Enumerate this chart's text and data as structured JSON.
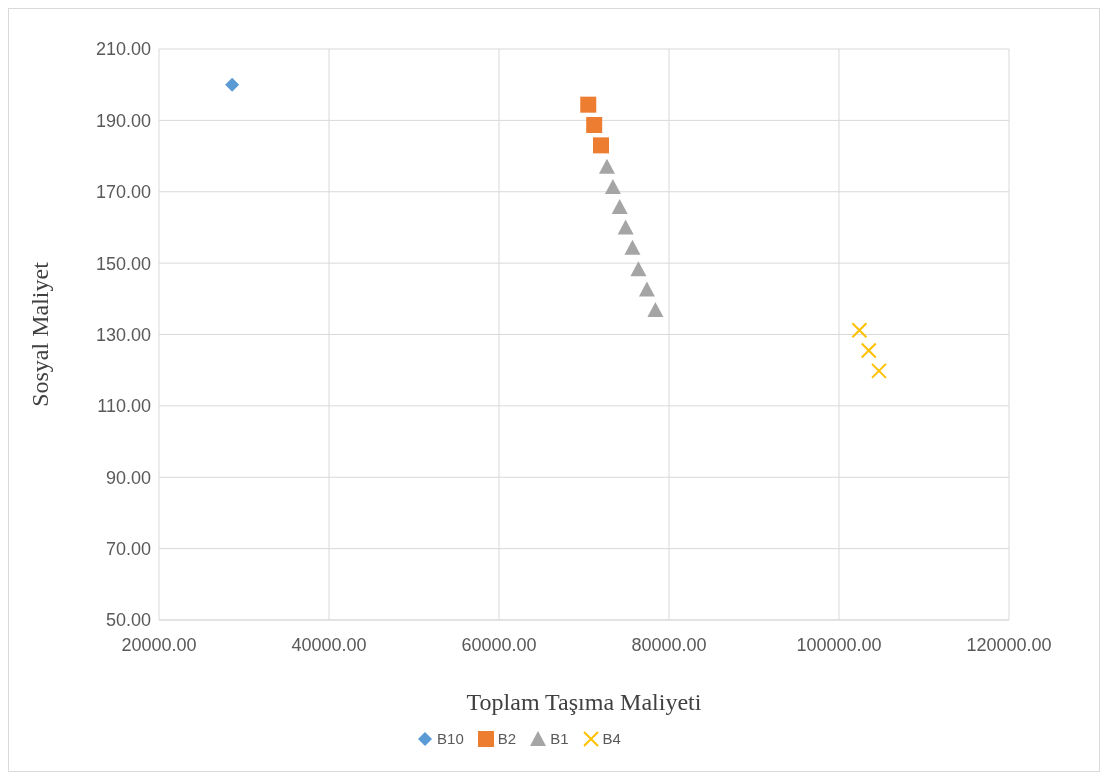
{
  "chart_data": {
    "type": "scatter",
    "xlabel": "Toplam Taşıma Maliyeti",
    "ylabel": "Sosyal Maliyet",
    "xlim": [
      20000,
      120000
    ],
    "xticks": [
      {
        "value": 20000,
        "label": "20000.00"
      },
      {
        "value": 40000,
        "label": "40000.00"
      },
      {
        "value": 60000,
        "label": "60000.00"
      },
      {
        "value": 80000,
        "label": "80000.00"
      },
      {
        "value": 100000,
        "label": "100000.00"
      },
      {
        "value": 120000,
        "label": "120000.00"
      }
    ],
    "ylim": [
      50,
      210
    ],
    "yticks": [
      {
        "value": 50,
        "label": "50.00"
      },
      {
        "value": 70,
        "label": "70.00"
      },
      {
        "value": 90,
        "label": "90.00"
      },
      {
        "value": 110,
        "label": "110.00"
      },
      {
        "value": 130,
        "label": "130.00"
      },
      {
        "value": 150,
        "label": "150.00"
      },
      {
        "value": 170,
        "label": "170.00"
      },
      {
        "value": 190,
        "label": "190.00"
      },
      {
        "value": 210,
        "label": "210.00"
      }
    ],
    "grid": true,
    "legend": "bottom",
    "series": [
      {
        "name": "B10",
        "color": "#5b9bd5",
        "marker": "diamond",
        "x": [
          28600
        ],
        "values": [
          200
        ]
      },
      {
        "name": "B2",
        "color": "#ed7d31",
        "marker": "square",
        "x": [
          70500,
          71200,
          72000
        ],
        "values": [
          194.4,
          188.7,
          183.0
        ]
      },
      {
        "name": "B1",
        "color": "#a5a5a5",
        "marker": "triangle",
        "x": [
          72700,
          73400,
          74200,
          74900,
          75700,
          76400,
          77400,
          78400
        ],
        "values": [
          177.0,
          171.3,
          165.7,
          160.0,
          154.3,
          148.3,
          142.6,
          136.9
        ]
      },
      {
        "name": "B4",
        "color": "#ffc000",
        "marker": "cross",
        "x": [
          102400,
          103500,
          104700
        ],
        "values": [
          131.2,
          125.5,
          119.8
        ]
      }
    ]
  }
}
